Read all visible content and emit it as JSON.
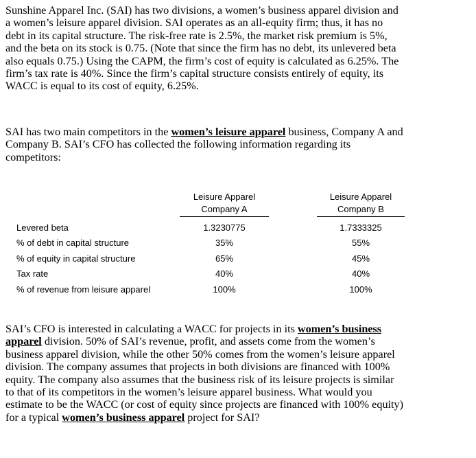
{
  "paragraphs": [
    [
      [
        {
          "t": "Sunshine Apparel Inc. (SAI) has two divisions, a women’s business apparel division and"
        }
      ],
      [
        {
          "t": "a women’s leisure apparel division.  SAI operates as an all-equity firm; thus, it has no"
        }
      ],
      [
        {
          "t": "debt in its capital structure.  The risk-free rate is 2.5%, the market risk premium is 5%,"
        }
      ],
      [
        {
          "t": "and the beta on its stock is 0.75.  (Note that since the firm has no debt, its unlevered beta"
        }
      ],
      [
        {
          "t": "also equals 0.75.)  Using the CAPM, the firm’s cost of equity is calculated as 6.25%.  The"
        }
      ],
      [
        {
          "t": "firm’s tax rate is 40%.  Since the firm’s capital structure consists entirely of equity, its"
        }
      ],
      [
        {
          "t": "WACC is equal to its cost of equity, 6.25%."
        }
      ]
    ],
    [
      [
        {
          "t": "SAI has two main competitors in the "
        },
        {
          "t": "women’s leisure apparel",
          "b": true
        },
        {
          "t": " business, Company A and"
        }
      ],
      [
        {
          "t": "Company B.  SAI’s CFO has collected the following information regarding its"
        }
      ],
      [
        {
          "t": "competitors:"
        }
      ]
    ],
    [
      [
        {
          "t": "SAI’s CFO is interested in calculating a WACC for projects in its "
        },
        {
          "t": "women’s business",
          "b": true
        }
      ],
      [
        {
          "t": "apparel",
          "b": true
        },
        {
          "t": " division.  50% of SAI’s revenue, profit, and assets come from the women’s"
        }
      ],
      [
        {
          "t": "business apparel division, while the other 50% comes from the women’s leisure apparel"
        }
      ],
      [
        {
          "t": "division.  The company assumes that projects in both divisions are financed with 100%"
        }
      ],
      [
        {
          "t": "equity.  The company also assumes that the business risk of its leisure projects is similar"
        }
      ],
      [
        {
          "t": "to that of its competitors in the women’s leisure apparel business.  What would you"
        }
      ],
      [
        {
          "t": "estimate to be the WACC (or cost of equity since projects are financed with 100% equity)"
        }
      ],
      [
        {
          "t": "for a typical "
        },
        {
          "t": "women’s business apparel",
          "b": true
        },
        {
          "t": " project for SAI?"
        }
      ]
    ]
  ],
  "table": {
    "headers": [
      {
        "line1": "Leisure Apparel",
        "line2": "Company A"
      },
      {
        "line1": "Leisure Apparel",
        "line2": "Company B"
      }
    ],
    "rows": [
      {
        "label": "Levered beta",
        "a": "1.3230775",
        "b": "1.7333325"
      },
      {
        "label": "% of debt in capital structure",
        "a": "35%",
        "b": "55%"
      },
      {
        "label": "% of equity in capital structure",
        "a": "65%",
        "b": "45%"
      },
      {
        "label": "Tax rate",
        "a": "40%",
        "b": "40%"
      },
      {
        "label": "% of revenue from leisure apparel",
        "a": "100%",
        "b": "100%"
      }
    ]
  }
}
